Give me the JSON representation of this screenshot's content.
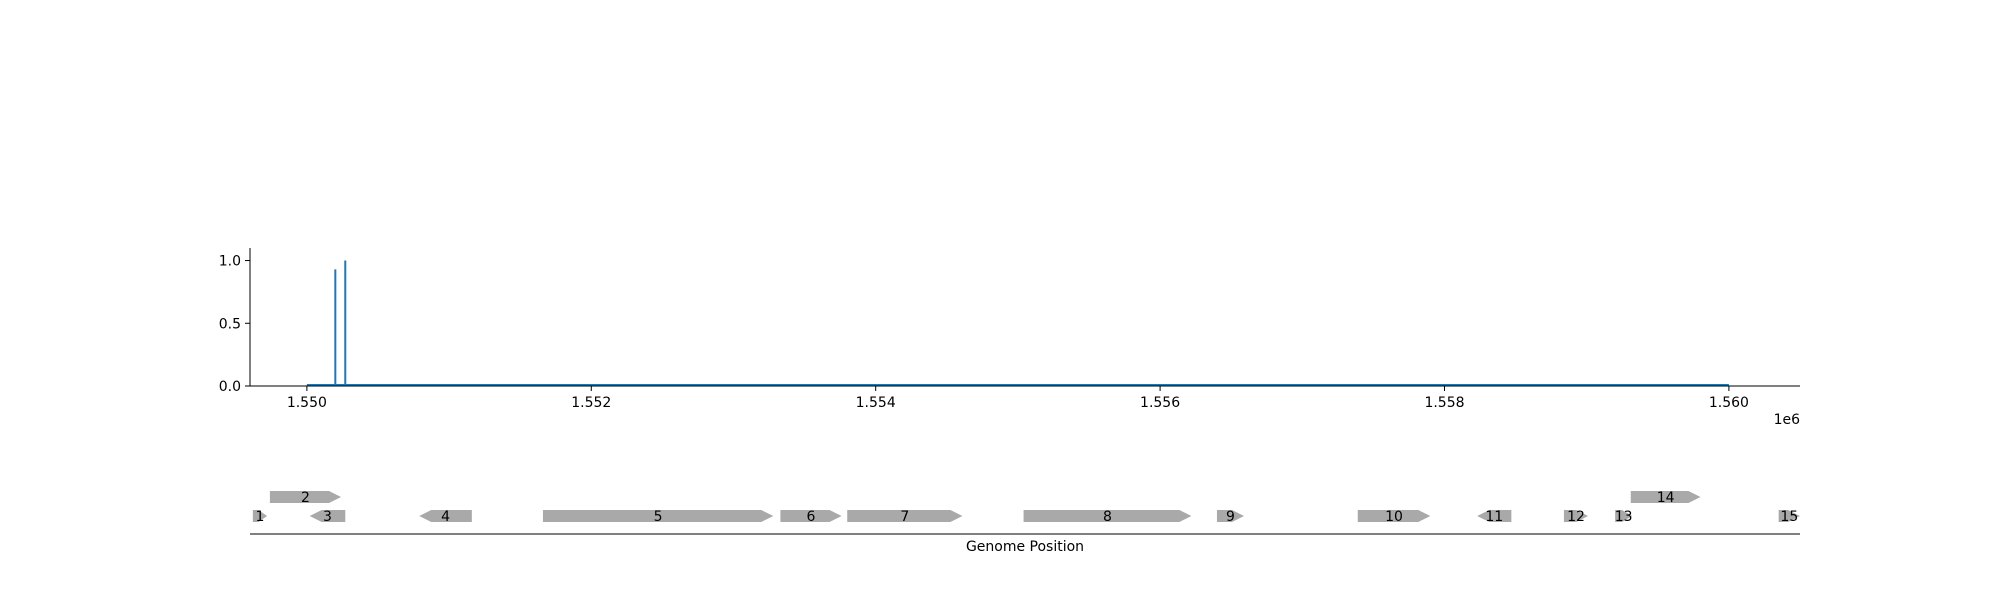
{
  "chart_data": [
    {
      "type": "line",
      "x_offset_label": "1e6",
      "xlim": [
        1549600,
        1560500
      ],
      "ylim": [
        0,
        1.1
      ],
      "xticks": [
        1550000,
        1552000,
        1554000,
        1556000,
        1558000,
        1560000
      ],
      "xtick_labels": [
        "1.550",
        "1.552",
        "1.554",
        "1.556",
        "1.558",
        "1.560"
      ],
      "yticks": [
        0.0,
        0.5,
        1.0
      ],
      "ytick_labels": [
        "0.0",
        "0.5",
        "1.0"
      ],
      "grid": false,
      "series": [
        {
          "color": "#1f77b4",
          "spikes": [
            {
              "x": 1550200,
              "y": 0.93
            },
            {
              "x": 1550270,
              "y": 1.0
            }
          ],
          "baseline_range": [
            1550000,
            1560000
          ]
        }
      ]
    },
    {
      "type": "gene_track",
      "xlabel": "Genome Position",
      "xlim": [
        1549600,
        1560500
      ],
      "feature_color": "#a9a9a9",
      "genes": [
        {
          "label": "1",
          "start": 1549620,
          "end": 1549720,
          "strand": "+",
          "row": 0
        },
        {
          "label": "2",
          "start": 1549740,
          "end": 1550240,
          "strand": "+",
          "row": 1
        },
        {
          "label": "3",
          "start": 1550020,
          "end": 1550270,
          "strand": "-",
          "row": 0
        },
        {
          "label": "4",
          "start": 1550790,
          "end": 1551160,
          "strand": "-",
          "row": 0
        },
        {
          "label": "5",
          "start": 1551660,
          "end": 1553280,
          "strand": "+",
          "row": 0
        },
        {
          "label": "6",
          "start": 1553330,
          "end": 1553760,
          "strand": "+",
          "row": 0
        },
        {
          "label": "7",
          "start": 1553800,
          "end": 1554610,
          "strand": "+",
          "row": 0
        },
        {
          "label": "8",
          "start": 1555040,
          "end": 1556220,
          "strand": "+",
          "row": 0
        },
        {
          "label": "9",
          "start": 1556400,
          "end": 1556590,
          "strand": "+",
          "row": 0
        },
        {
          "label": "10",
          "start": 1557390,
          "end": 1557900,
          "strand": "+",
          "row": 0
        },
        {
          "label": "11",
          "start": 1558230,
          "end": 1558470,
          "strand": "-",
          "row": 0
        },
        {
          "label": "12",
          "start": 1558840,
          "end": 1559010,
          "strand": "+",
          "row": 0
        },
        {
          "label": "13",
          "start": 1559200,
          "end": 1559320,
          "strand": "+",
          "row": 0
        },
        {
          "label": "14",
          "start": 1559310,
          "end": 1559800,
          "strand": "+",
          "row": 1
        },
        {
          "label": "15",
          "start": 1560350,
          "end": 1560500,
          "strand": "+",
          "row": 0
        }
      ]
    }
  ]
}
